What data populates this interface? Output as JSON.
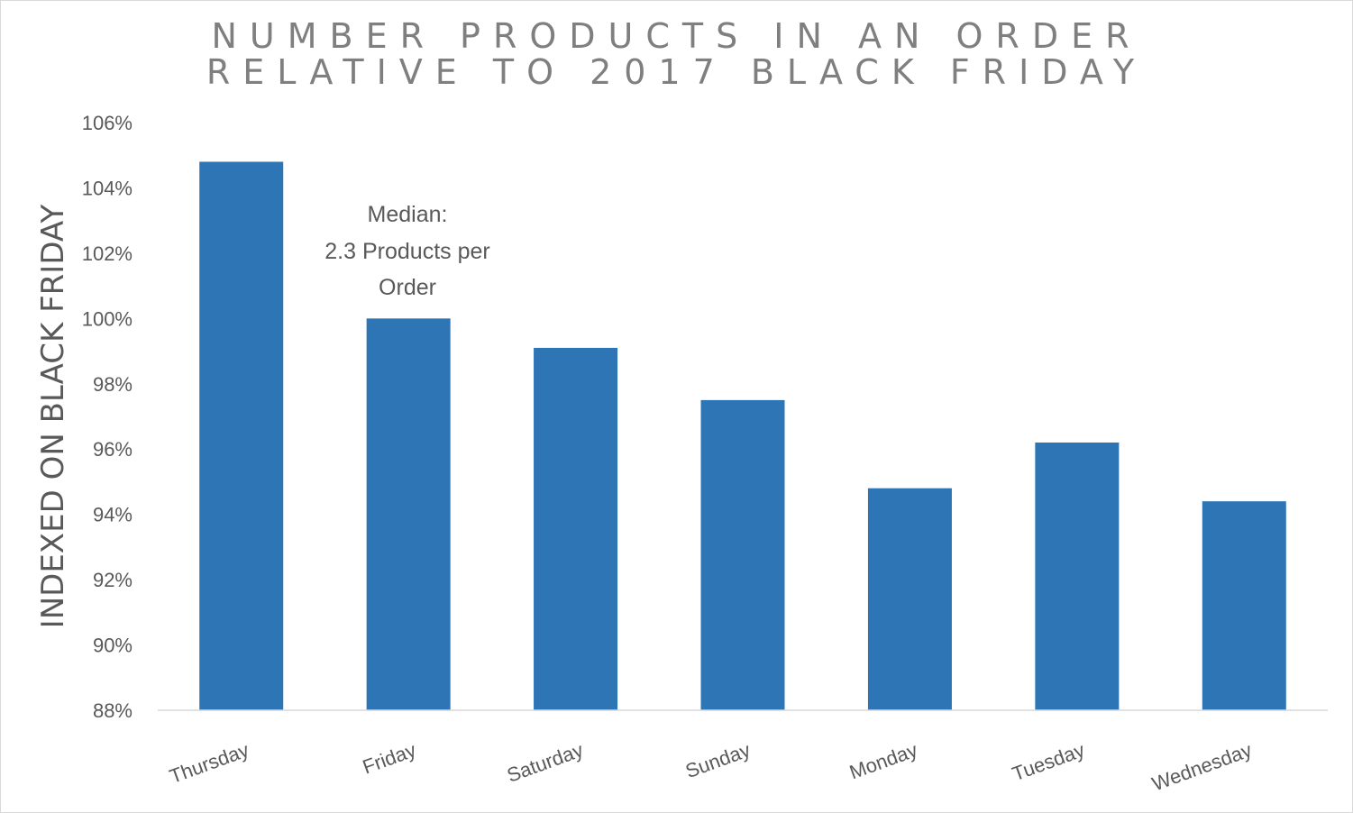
{
  "chart_data": {
    "type": "bar",
    "title": [
      "NUMBER PRODUCTS IN AN ORDER",
      "RELATIVE TO 2017 BLACK FRIDAY"
    ],
    "xlabel": "",
    "ylabel": "INDEXED ON BLACK FRIDAY",
    "categories": [
      "Thursday",
      "Friday",
      "Saturday",
      "Sunday",
      "Monday",
      "Tuesday",
      "Wednesday"
    ],
    "values": [
      104.8,
      100.0,
      99.1,
      97.5,
      94.8,
      96.2,
      94.4
    ],
    "ylim": [
      88,
      106
    ],
    "yticks": [
      88,
      90,
      92,
      94,
      96,
      98,
      100,
      102,
      104,
      106
    ],
    "ytick_format": "%",
    "grid": false,
    "bar_color": "#2e75b6",
    "annotation": [
      "Median:",
      "2.3 Products per",
      "Order"
    ]
  }
}
